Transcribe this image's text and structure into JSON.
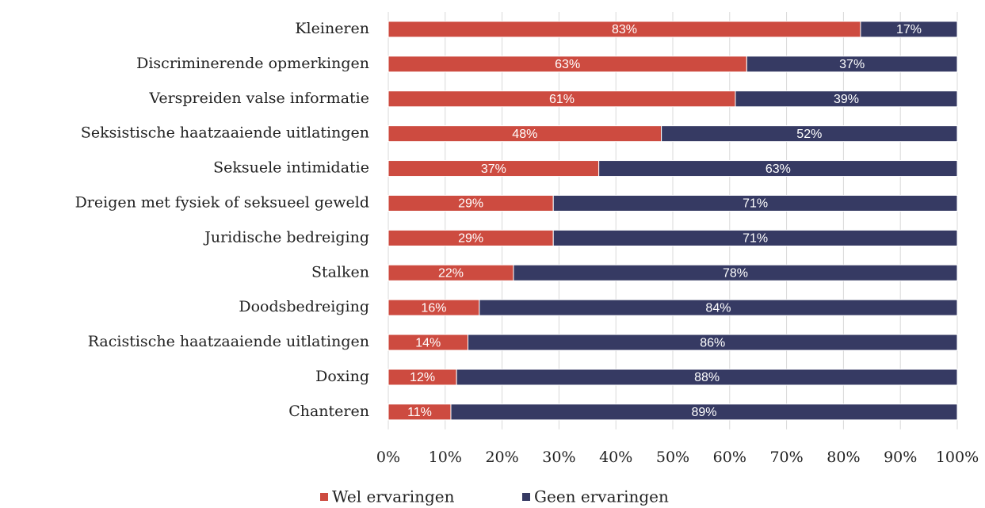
{
  "chart_data": {
    "type": "stacked-bar-horizontal",
    "categories": [
      "Kleineren",
      "Discriminerende opmerkingen",
      "Verspreiden valse informatie",
      "Seksistische haatzaaiende uitlatingen",
      "Seksuele intimidatie",
      "Dreigen met fysiek of seksueel geweld",
      "Juridische bedreiging",
      "Stalken",
      "Doodsbedreiging",
      "Racistische haatzaaiende uitlatingen",
      "Doxing",
      "Chanteren"
    ],
    "series": [
      {
        "name": "Wel ervaringen",
        "color": "#cd4b40",
        "values": [
          83,
          63,
          61,
          48,
          37,
          29,
          29,
          22,
          16,
          14,
          12,
          11
        ],
        "value_labels": [
          "83%",
          "63%",
          "61%",
          "48%",
          "37%",
          "29%",
          "29%",
          "22%",
          "16%",
          "14%",
          "12%",
          "11%"
        ]
      },
      {
        "name": "Geen ervaringen",
        "color": "#363a63",
        "values": [
          17,
          37,
          39,
          52,
          63,
          71,
          71,
          78,
          84,
          86,
          88,
          89
        ],
        "value_labels": [
          "17%",
          "37%",
          "39%",
          "52%",
          "63%",
          "71%",
          "71%",
          "78%",
          "84%",
          "86%",
          "88%",
          "89%"
        ]
      }
    ],
    "xlim": [
      0,
      100
    ],
    "xticks": [
      {
        "value": 0,
        "label": "0%"
      },
      {
        "value": 10,
        "label": "10%"
      },
      {
        "value": 20,
        "label": "20%"
      },
      {
        "value": 30,
        "label": "30%"
      },
      {
        "value": 40,
        "label": "40%"
      },
      {
        "value": 50,
        "label": "50%"
      },
      {
        "value": 60,
        "label": "60%"
      },
      {
        "value": 70,
        "label": "70%"
      },
      {
        "value": 80,
        "label": "80%"
      },
      {
        "value": 90,
        "label": "90%"
      },
      {
        "value": 100,
        "label": "100%"
      }
    ],
    "grid": true,
    "legend": "bottom"
  }
}
